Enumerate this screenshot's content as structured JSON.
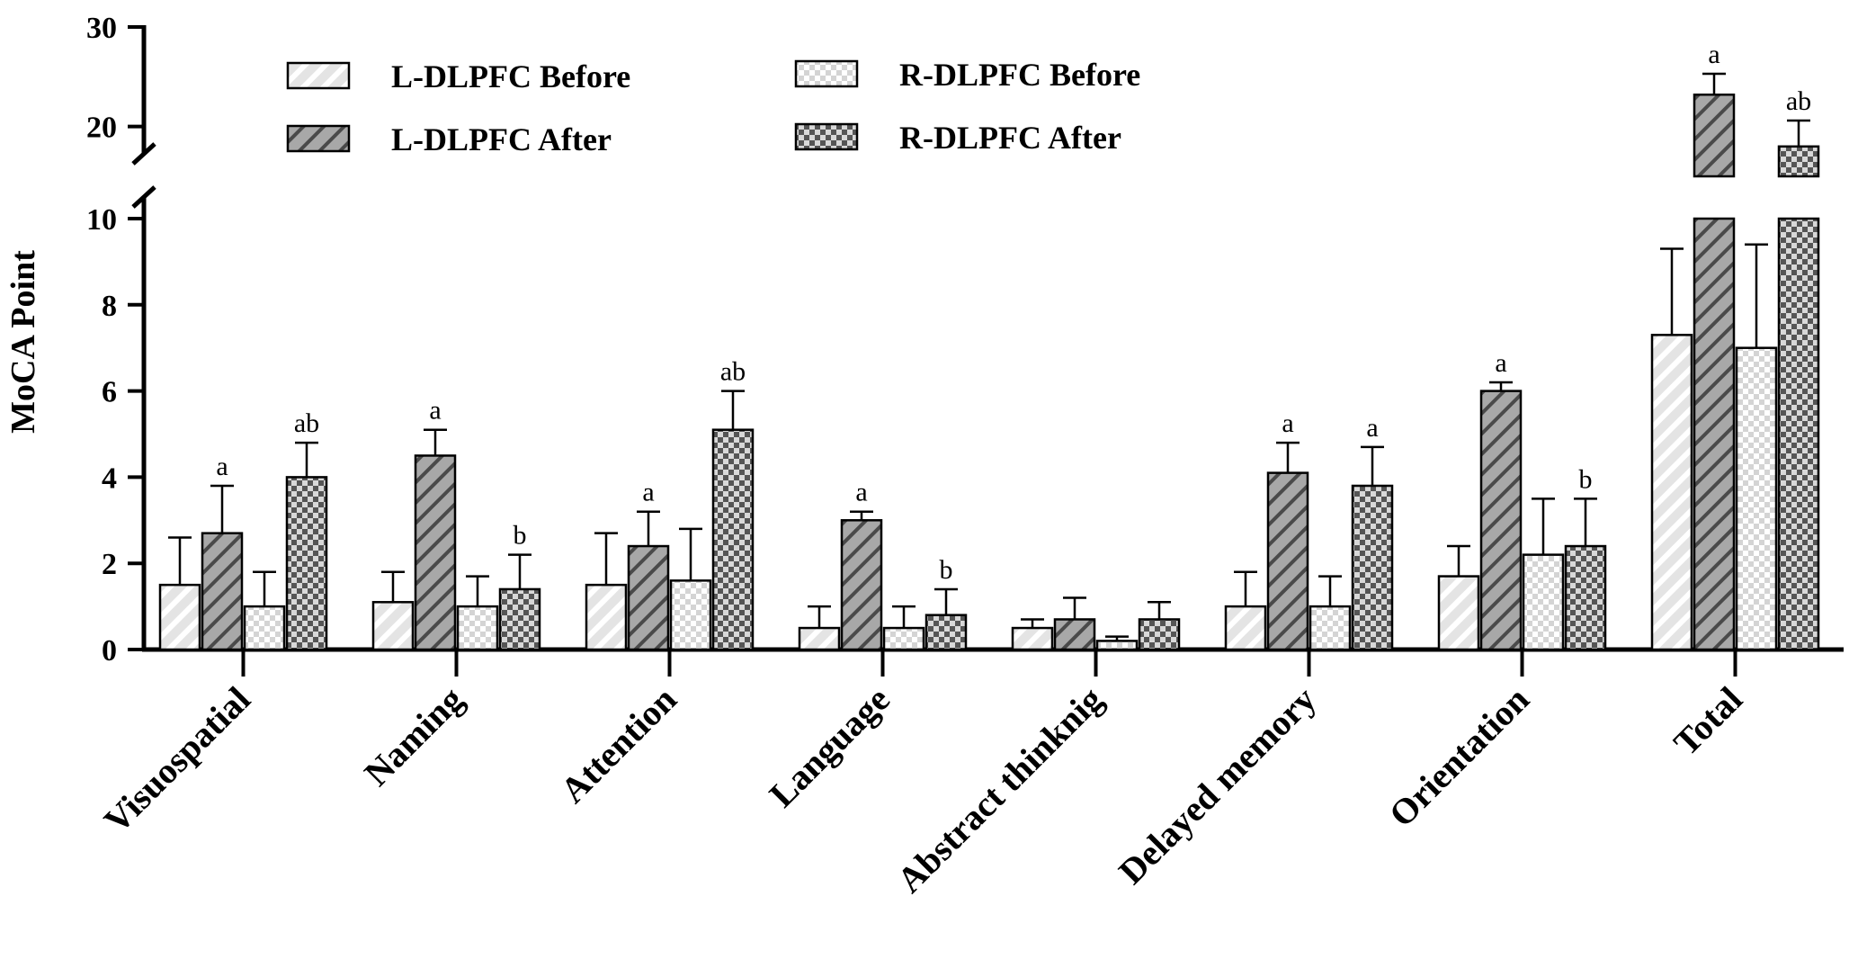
{
  "chart_data": {
    "type": "bar",
    "ylabel": "MoCA Point",
    "categories": [
      "Visuospatial",
      "Naming",
      "Attention",
      "Language",
      "Abstract thinknig",
      "Delayed memory",
      "Orientation",
      "Total"
    ],
    "y_axis": {
      "broken": true,
      "lower_segment": [
        0,
        10
      ],
      "upper_segment": [
        15,
        30
      ],
      "ticks": [
        0,
        2,
        4,
        6,
        8,
        10,
        20,
        30
      ]
    },
    "series": [
      {
        "name": "L-DLPFC Before",
        "pattern": "light-diagonal",
        "values": [
          1.5,
          1.1,
          1.5,
          0.5,
          0.5,
          1.0,
          1.7,
          7.3
        ],
        "errors": [
          1.1,
          0.7,
          1.2,
          0.5,
          0.2,
          0.8,
          0.7,
          2.0
        ],
        "labels": [
          "",
          "",
          "",
          "",
          "",
          "",
          "",
          ""
        ]
      },
      {
        "name": "L-DLPFC After",
        "pattern": "dark-diagonal",
        "values": [
          2.7,
          4.5,
          2.4,
          3.0,
          0.7,
          4.1,
          6.0,
          23.2
        ],
        "errors": [
          1.1,
          0.6,
          0.8,
          0.2,
          0.5,
          0.7,
          0.2,
          2.1
        ],
        "labels": [
          "a",
          "a",
          "a",
          "a",
          "",
          "a",
          "a",
          "a"
        ]
      },
      {
        "name": "R-DLPFC Before",
        "pattern": "light-checker",
        "values": [
          1.0,
          1.0,
          1.6,
          0.5,
          0.2,
          1.0,
          2.2,
          7.0
        ],
        "errors": [
          0.8,
          0.7,
          1.2,
          0.5,
          0.1,
          0.7,
          1.3,
          2.4
        ],
        "labels": [
          "",
          "",
          "",
          "",
          "",
          "",
          "",
          ""
        ]
      },
      {
        "name": "R-DLPFC After",
        "pattern": "dark-checker",
        "values": [
          4.0,
          1.4,
          5.1,
          0.8,
          0.7,
          3.8,
          2.4,
          18.0
        ],
        "errors": [
          0.8,
          0.8,
          0.9,
          0.6,
          0.4,
          0.9,
          1.1,
          2.6
        ],
        "labels": [
          "ab",
          "b",
          "ab",
          "b",
          "",
          "a",
          "b",
          "ab"
        ]
      }
    ]
  }
}
